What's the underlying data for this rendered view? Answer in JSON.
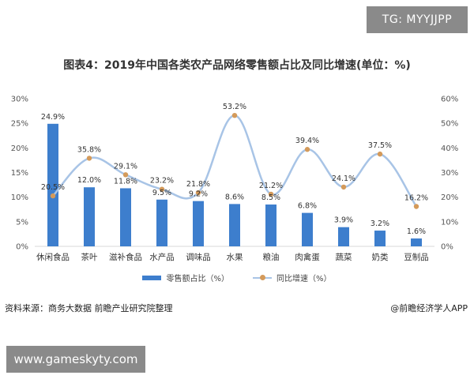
{
  "overlay": {
    "tag": "TG: MYYJJPP",
    "site": "www.gameskyty.com"
  },
  "footer": {
    "source": "资料来源：商务大数据 前瞻产业研究院整理",
    "credit": "@前瞻经济学人APP"
  },
  "colors": {
    "bar": "#3d7ecd",
    "line": "#a8c4e6",
    "marker": "#d49a5a"
  },
  "chart_data": {
    "type": "bar",
    "title": "图表4：2019年中国各类农产品网络零售额占比及同比增速(单位：%)",
    "categories": [
      "休闲食品",
      "茶叶",
      "滋补食品",
      "水产品",
      "调味品",
      "水果",
      "粮油",
      "肉禽蛋",
      "蔬菜",
      "奶类",
      "豆制品"
    ],
    "series": [
      {
        "name": "零售额占比（%）",
        "chart": "bar",
        "axis": "left",
        "values": [
          24.9,
          12.0,
          11.8,
          9.5,
          9.2,
          8.6,
          8.5,
          6.8,
          3.9,
          3.2,
          1.6
        ],
        "labels": [
          "24.9%",
          "12.0%",
          "11.8%",
          "9.5%",
          "9.2%",
          "8.6%",
          "8.5%",
          "6.8%",
          "3.9%",
          "3.2%",
          "1.6%"
        ]
      },
      {
        "name": "同比增速（%）",
        "chart": "line",
        "axis": "right",
        "values": [
          20.5,
          35.8,
          29.1,
          23.2,
          21.8,
          53.2,
          21.2,
          39.4,
          24.1,
          37.5,
          16.2
        ],
        "labels": [
          "20.5%",
          "35.8%",
          "29.1%",
          "23.2%",
          "21.8%",
          "53.2%",
          "21.2%",
          "39.4%",
          "24.1%",
          "37.5%",
          "16.2%"
        ]
      }
    ],
    "ylim_left": [
      0,
      30
    ],
    "yticks_left": [
      "0%",
      "5%",
      "10%",
      "15%",
      "20%",
      "25%",
      "30%"
    ],
    "ylim_right": [
      0,
      60
    ],
    "yticks_right": [
      "0%",
      "10%",
      "20%",
      "30%",
      "40%",
      "50%",
      "60%"
    ],
    "grid": false,
    "legend": "bottom"
  }
}
